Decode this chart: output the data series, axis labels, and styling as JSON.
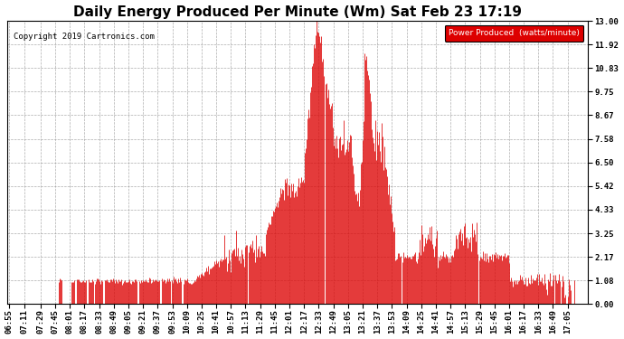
{
  "title": "Daily Energy Produced Per Minute (Wm) Sat Feb 23 17:19",
  "copyright": "Copyright 2019 Cartronics.com",
  "legend_label": "Power Produced  (watts/minute)",
  "yticks": [
    0.0,
    1.08,
    2.17,
    3.25,
    4.33,
    5.42,
    6.5,
    7.58,
    8.67,
    9.75,
    10.83,
    11.92,
    13.0
  ],
  "ylim": [
    0.0,
    13.0
  ],
  "line_color": "#dd0000",
  "bg_color": "#ffffff",
  "grid_color": "#999999",
  "title_fontsize": 11,
  "tick_fontsize": 6.5,
  "xtick_labels": [
    "06:55",
    "07:11",
    "07:29",
    "07:45",
    "08:01",
    "08:17",
    "08:33",
    "08:49",
    "09:05",
    "09:21",
    "09:37",
    "09:53",
    "10:09",
    "10:25",
    "10:41",
    "10:57",
    "11:13",
    "11:29",
    "11:45",
    "12:01",
    "12:17",
    "12:33",
    "12:49",
    "13:05",
    "13:21",
    "13:37",
    "13:53",
    "14:09",
    "14:25",
    "14:41",
    "14:57",
    "15:13",
    "15:29",
    "15:45",
    "16:01",
    "16:17",
    "16:33",
    "16:49",
    "17:05"
  ],
  "num_points": 630
}
